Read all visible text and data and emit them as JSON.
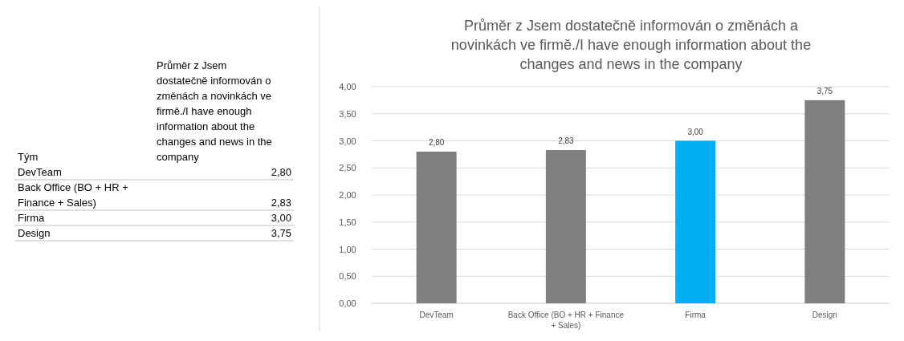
{
  "chart_data": [
    {
      "type": "other",
      "title": "Průměr z Jsem dostatečně informován o změnách a novinkách ve firmě./I have enough information about the changes and news in the company",
      "annotations": [
        "Tým"
      ],
      "categories": [
        "DevTeam",
        "Back Office (BO + HR + Finance + Sales)",
        "Firma",
        "Design"
      ],
      "value_labels": [
        "2,80",
        "2,83",
        "3,00",
        "3,75"
      ]
    },
    {
      "type": "bar",
      "title": "Průměr z Jsem dostatečně informován o změnách a novinkách ve firmě./I have enough information about the changes and news in the company",
      "categories": [
        "DevTeam",
        "Back Office (BO + HR + Finance + Sales)",
        "Firma",
        "Design"
      ],
      "values": [
        2.8,
        2.83,
        3.0,
        3.75
      ],
      "colors": [
        "#7f7f7f",
        "#7f7f7f",
        "#00b0f0",
        "#7f7f7f"
      ],
      "value_labels": [
        "2,80",
        "2,83",
        "3,00",
        "3,75"
      ],
      "ylim": [
        0,
        4
      ],
      "yticks": [
        {
          "value": 0,
          "label": "0,00"
        },
        {
          "value": 0.5,
          "label": "0,50"
        },
        {
          "value": 1,
          "label": "1,00"
        },
        {
          "value": 1.5,
          "label": "1,50"
        },
        {
          "value": 2,
          "label": "2,00"
        },
        {
          "value": 2.5,
          "label": "2,50"
        },
        {
          "value": 3,
          "label": "3,00"
        },
        {
          "value": 3.5,
          "label": "3,50"
        },
        {
          "value": 4,
          "label": "4,00"
        }
      ],
      "grid": "y"
    }
  ]
}
